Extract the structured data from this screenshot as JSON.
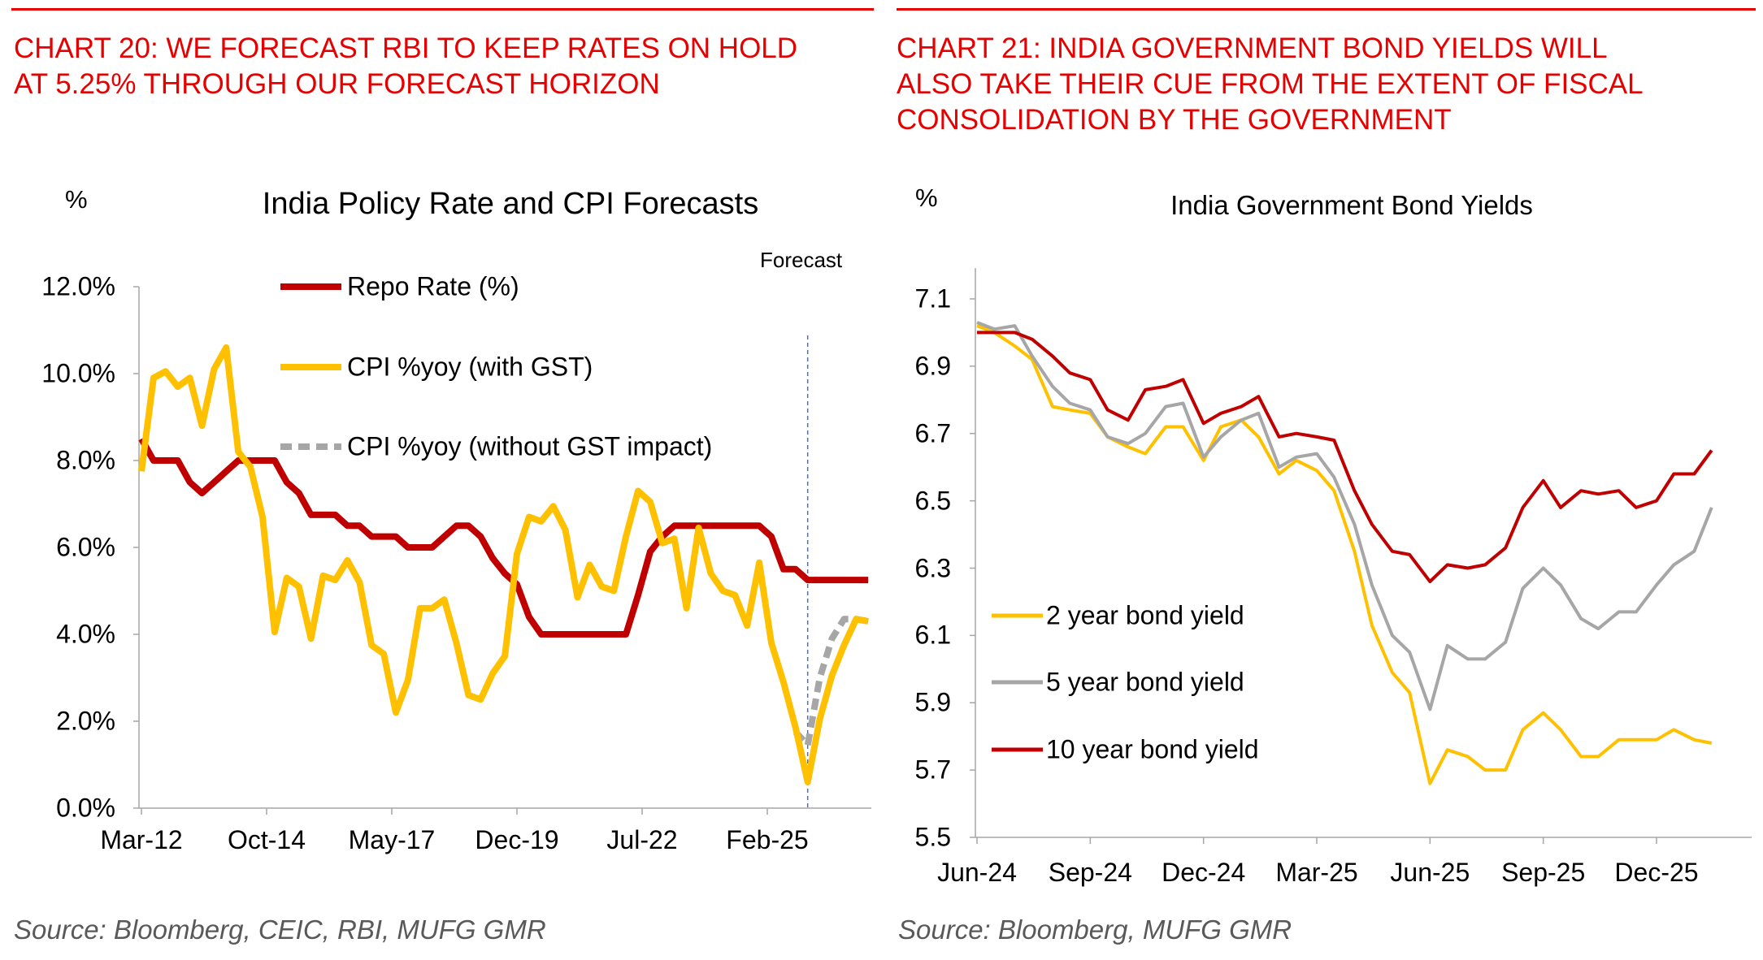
{
  "left": {
    "heading": [
      "CHART 20: WE FORECAST RBI TO KEEP RATES ON HOLD",
      "AT 5.25% THROUGH OUR FORECAST HORIZON"
    ],
    "unit": "%",
    "source": "Source: Bloomberg, CEIC, RBI, MUFG GMR"
  },
  "right": {
    "heading": [
      "CHART 21: INDIA GOVERNMENT BOND YIELDS WILL",
      "ALSO TAKE THEIR CUE FROM THE EXTENT OF FISCAL",
      "CONSOLIDATION BY THE GOVERNMENT"
    ],
    "unit": "%",
    "source": "Source: Bloomberg, MUFG GMR"
  },
  "colors": {
    "heading": "#e60000",
    "repo": "#c00000",
    "cpi": "#ffc000",
    "cpi_ex_gst": "#a6a6a6",
    "forecast_line": "#4472c4",
    "y2": "#ffc000",
    "y5": "#a6a6a6",
    "y10": "#c00000"
  },
  "chart_data": [
    {
      "type": "line",
      "title": "India Policy Rate and CPI Forecasts",
      "ylabel": "%",
      "ylim": [
        0,
        12
      ],
      "yticks": [
        "0.0%",
        "2.0%",
        "4.0%",
        "6.0%",
        "8.0%",
        "10.0%",
        "12.0%"
      ],
      "xticks": [
        "Mar-12",
        "Oct-14",
        "May-17",
        "Dec-19",
        "Jul-22",
        "Feb-25"
      ],
      "xtick_dates": [
        "2012-03",
        "2014-10",
        "2017-05",
        "2019-12",
        "2022-07",
        "2025-02"
      ],
      "legend_placement": "top",
      "grid": false,
      "annotation": {
        "label": "Forecast",
        "date": "2025-12"
      },
      "x": [
        "2012-03",
        "2012-06",
        "2012-09",
        "2012-12",
        "2013-03",
        "2013-06",
        "2013-09",
        "2013-12",
        "2014-03",
        "2014-06",
        "2014-09",
        "2014-12",
        "2015-03",
        "2015-06",
        "2015-09",
        "2015-12",
        "2016-03",
        "2016-06",
        "2016-09",
        "2016-12",
        "2017-03",
        "2017-06",
        "2017-09",
        "2017-12",
        "2018-03",
        "2018-06",
        "2018-09",
        "2018-12",
        "2019-03",
        "2019-06",
        "2019-09",
        "2019-12",
        "2020-03",
        "2020-06",
        "2020-09",
        "2020-12",
        "2021-03",
        "2021-06",
        "2021-09",
        "2021-12",
        "2022-03",
        "2022-06",
        "2022-09",
        "2022-12",
        "2023-03",
        "2023-06",
        "2023-09",
        "2023-12",
        "2024-03",
        "2024-06",
        "2024-09",
        "2024-12",
        "2025-03",
        "2025-06",
        "2025-09",
        "2025-12",
        "2026-03",
        "2026-06",
        "2026-09",
        "2026-12",
        "2027-03"
      ],
      "series": [
        {
          "name": "Repo Rate (%)",
          "style": "solid",
          "values": [
            8.5,
            8,
            8,
            8,
            7.5,
            7.25,
            7.5,
            7.75,
            8,
            8,
            8,
            8,
            7.5,
            7.25,
            6.75,
            6.75,
            6.75,
            6.5,
            6.5,
            6.25,
            6.25,
            6.25,
            6,
            6,
            6,
            6.25,
            6.5,
            6.5,
            6.25,
            5.75,
            5.4,
            5.15,
            4.4,
            4,
            4,
            4,
            4,
            4,
            4,
            4,
            4,
            4.9,
            5.9,
            6.25,
            6.5,
            6.5,
            6.5,
            6.5,
            6.5,
            6.5,
            6.5,
            6.5,
            6.25,
            5.5,
            5.5,
            5.25,
            5.25,
            5.25,
            5.25,
            5.25,
            5.25
          ]
        },
        {
          "name": "CPI %yoy (with GST)",
          "style": "solid",
          "values": [
            7.75,
            9.9,
            10.05,
            9.7,
            9.9,
            8.8,
            10.1,
            10.6,
            8.2,
            7.85,
            6.7,
            4.05,
            5.3,
            5.1,
            3.9,
            5.35,
            5.25,
            5.7,
            5.2,
            3.75,
            3.55,
            2.2,
            2.95,
            4.6,
            4.6,
            4.8,
            3.8,
            2.6,
            2.5,
            3.1,
            3.5,
            5.85,
            6.7,
            6.6,
            6.95,
            6.4,
            4.85,
            5.6,
            5.1,
            5.0,
            6.25,
            7.3,
            7.05,
            6.1,
            6.2,
            4.6,
            6.45,
            5.4,
            5.0,
            4.9,
            4.2,
            5.65,
            3.8,
            2.9,
            1.85,
            0.6,
            2.05,
            3.05,
            3.75,
            4.35,
            4.3
          ]
        },
        {
          "name": "CPI %yoy (without GST impact)",
          "style": "dashed",
          "x": [
            "2025-09",
            "2025-12",
            "2026-03",
            "2026-06",
            "2026-09",
            "2026-12",
            "2027-03"
          ],
          "values": [
            1.75,
            1.45,
            3.0,
            3.9,
            4.35,
            4.35,
            4.3
          ]
        }
      ]
    },
    {
      "type": "line",
      "title": "India Government Bond Yields",
      "ylabel": "%",
      "ylim": [
        5.5,
        7.1
      ],
      "yticks": [
        "5.5",
        "5.7",
        "5.9",
        "6.1",
        "6.3",
        "6.5",
        "6.7",
        "6.9",
        "7.1"
      ],
      "xticks": [
        "Jun-24",
        "Sep-24",
        "Dec-24",
        "Mar-25",
        "Jun-25",
        "Sep-25",
        "Dec-25"
      ],
      "xtick_dates": [
        "2024-06-01",
        "2024-09-01",
        "2024-12-01",
        "2025-03-01",
        "2025-06-01",
        "2025-09-01",
        "2025-12-01"
      ],
      "legend_placement": "bottom-left",
      "grid": false,
      "x": [
        "2024-06-01",
        "2024-06-15",
        "2024-07-01",
        "2024-07-15",
        "2024-08-01",
        "2024-08-15",
        "2024-09-01",
        "2024-09-15",
        "2024-10-01",
        "2024-10-15",
        "2024-11-01",
        "2024-11-15",
        "2024-12-01",
        "2024-12-15",
        "2025-01-01",
        "2025-01-15",
        "2025-02-01",
        "2025-02-15",
        "2025-03-01",
        "2025-03-15",
        "2025-04-01",
        "2025-04-15",
        "2025-05-01",
        "2025-05-15",
        "2025-06-01",
        "2025-06-15",
        "2025-07-01",
        "2025-07-15",
        "2025-08-01",
        "2025-08-15",
        "2025-09-01",
        "2025-09-15",
        "2025-10-01",
        "2025-10-15",
        "2025-11-01",
        "2025-11-15",
        "2025-12-01",
        "2025-12-15",
        "2026-01-01",
        "2026-01-15"
      ],
      "series": [
        {
          "name": "2 year  bond yield",
          "values": [
            7.02,
            7.0,
            6.96,
            6.92,
            6.78,
            6.77,
            6.76,
            6.69,
            6.66,
            6.64,
            6.72,
            6.72,
            6.62,
            6.72,
            6.74,
            6.69,
            6.58,
            6.62,
            6.59,
            6.53,
            6.35,
            6.13,
            5.99,
            5.93,
            5.66,
            5.76,
            5.74,
            5.7,
            5.7,
            5.82,
            5.87,
            5.82,
            5.74,
            5.74,
            5.79,
            5.79,
            5.79,
            5.82,
            5.79,
            5.78
          ]
        },
        {
          "name": "5 year  bond yield",
          "values": [
            7.03,
            7.01,
            7.02,
            6.93,
            6.84,
            6.79,
            6.77,
            6.69,
            6.67,
            6.7,
            6.78,
            6.79,
            6.63,
            6.69,
            6.74,
            6.76,
            6.6,
            6.63,
            6.64,
            6.57,
            6.43,
            6.25,
            6.1,
            6.05,
            5.88,
            6.07,
            6.03,
            6.03,
            6.08,
            6.24,
            6.3,
            6.25,
            6.15,
            6.12,
            6.17,
            6.17,
            6.25,
            6.31,
            6.35,
            6.48
          ]
        },
        {
          "name": "10 year  bond yield",
          "values": [
            7.0,
            7.0,
            7.0,
            6.98,
            6.93,
            6.88,
            6.86,
            6.77,
            6.74,
            6.83,
            6.84,
            6.86,
            6.73,
            6.76,
            6.78,
            6.81,
            6.69,
            6.7,
            6.69,
            6.68,
            6.53,
            6.43,
            6.35,
            6.34,
            6.26,
            6.31,
            6.3,
            6.31,
            6.36,
            6.48,
            6.56,
            6.48,
            6.53,
            6.52,
            6.53,
            6.48,
            6.5,
            6.58,
            6.58,
            6.65
          ]
        }
      ]
    }
  ]
}
